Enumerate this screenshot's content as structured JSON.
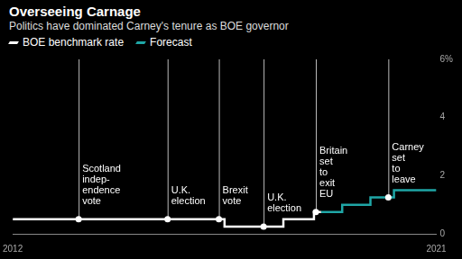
{
  "chart_data": {
    "type": "line",
    "title": "Overseeing Carnage",
    "subtitle": "Politics have dominated Carney's tenure as BOE governor",
    "xlim": [
      2012,
      2021
    ],
    "xticks": [
      2012,
      2021
    ],
    "ylim": [
      0,
      6
    ],
    "yticks": [
      0,
      2,
      4,
      {
        "value": 6,
        "label": "6%"
      }
    ],
    "grid": false,
    "legend": "top",
    "series": [
      {
        "name": "BOE benchmark rate",
        "color": "#ffffff",
        "x": [
          2012,
          2016.5,
          2016.5,
          2017.75,
          2017.75,
          2018.4,
          2018.4,
          2018.55
        ],
        "values": [
          0.5,
          0.5,
          0.25,
          0.25,
          0.5,
          0.5,
          0.75,
          0.75
        ]
      },
      {
        "name": "Forecast",
        "color": "#1fa6a6",
        "x": [
          2018.55,
          2019.0,
          2019.0,
          2019.6,
          2019.6,
          2020.1,
          2020.1,
          2021
        ],
        "values": [
          0.75,
          0.75,
          1.0,
          1.0,
          1.25,
          1.25,
          1.5,
          1.5
        ]
      }
    ],
    "annotations": [
      {
        "x": 2013.4,
        "label": [
          "Scotland",
          "indep-",
          "endence",
          "vote"
        ]
      },
      {
        "x": 2015.29,
        "label": [
          "U.K.",
          "election"
        ]
      },
      {
        "x": 2016.38,
        "label": [
          "Brexit",
          "vote"
        ]
      },
      {
        "x": 2017.33,
        "label": [
          "U.K.",
          "election"
        ]
      },
      {
        "x": 2018.44,
        "label": [
          "Britain",
          "set",
          "to",
          "exit",
          "EU"
        ]
      },
      {
        "x": 2019.98,
        "label": [
          "Carney",
          "set",
          "to",
          "leave"
        ]
      }
    ]
  }
}
